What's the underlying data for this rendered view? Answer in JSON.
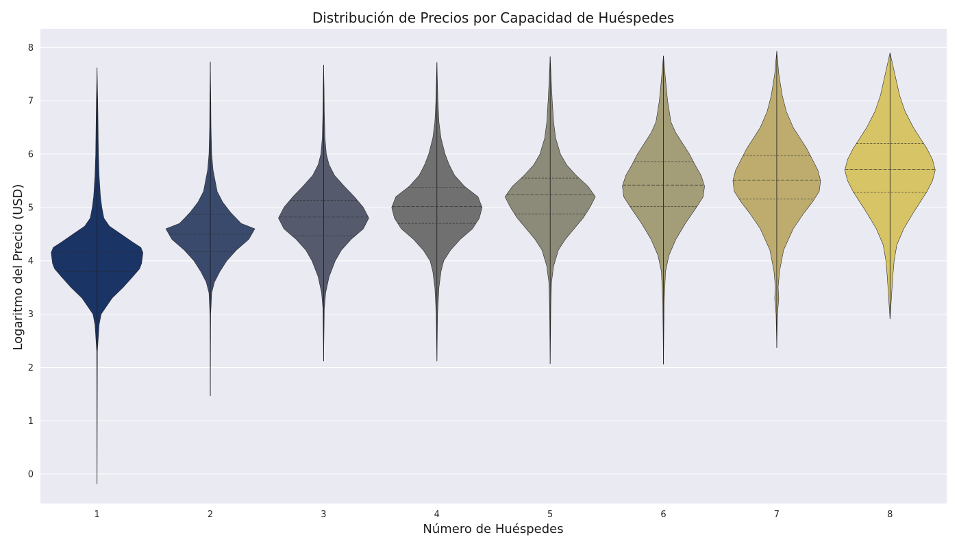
{
  "chart_data": {
    "type": "violin",
    "title": "Distribución de Precios por Capacidad de Huéspedes",
    "xlabel": "Número de Huéspedes",
    "ylabel": "Logaritmo del Precio (USD)",
    "categories": [
      "1",
      "2",
      "3",
      "4",
      "5",
      "6",
      "7",
      "8"
    ],
    "ylim": [
      -0.55,
      8.35
    ],
    "yticks": [
      "0",
      "1",
      "2",
      "3",
      "4",
      "5",
      "6",
      "7",
      "8"
    ],
    "grid": true,
    "colors": [
      "#1b3466",
      "#3a4a6d",
      "#555a6c",
      "#6f706f",
      "#8c8a78",
      "#a39d78",
      "#bdac6e",
      "#d7c466"
    ],
    "background": "#eaeaf2",
    "series": [
      {
        "min": -0.18,
        "max": 7.62,
        "q1": 3.8,
        "median": 4.16,
        "q3": 4.5,
        "profile": [
          [
            -0.18,
            0
          ],
          [
            2.3,
            0.5
          ],
          [
            2.8,
            3
          ],
          [
            3.0,
            6
          ],
          [
            3.3,
            22
          ],
          [
            3.5,
            38
          ],
          [
            3.7,
            52
          ],
          [
            3.85,
            62
          ],
          [
            3.95,
            65
          ],
          [
            4.05,
            66
          ],
          [
            4.15,
            67
          ],
          [
            4.25,
            64
          ],
          [
            4.35,
            52
          ],
          [
            4.5,
            35
          ],
          [
            4.65,
            18
          ],
          [
            4.8,
            10
          ],
          [
            5.0,
            7
          ],
          [
            5.2,
            5
          ],
          [
            5.4,
            4
          ],
          [
            5.6,
            3
          ],
          [
            6.0,
            2
          ],
          [
            6.5,
            1.5
          ],
          [
            7.0,
            1
          ],
          [
            7.62,
            0
          ]
        ]
      },
      {
        "min": 1.47,
        "max": 7.73,
        "q1": 4.17,
        "median": 4.5,
        "q3": 4.87,
        "profile": [
          [
            1.47,
            0
          ],
          [
            3.0,
            0.5
          ],
          [
            3.4,
            2
          ],
          [
            3.6,
            6
          ],
          [
            3.8,
            14
          ],
          [
            4.0,
            24
          ],
          [
            4.2,
            38
          ],
          [
            4.4,
            56
          ],
          [
            4.6,
            65
          ],
          [
            4.7,
            45
          ],
          [
            4.9,
            30
          ],
          [
            5.1,
            18
          ],
          [
            5.3,
            10
          ],
          [
            5.5,
            7
          ],
          [
            5.7,
            4
          ],
          [
            6.0,
            2
          ],
          [
            6.5,
            1
          ],
          [
            7.0,
            0.7
          ],
          [
            7.73,
            0
          ]
        ]
      },
      {
        "min": 2.12,
        "max": 7.67,
        "q1": 4.47,
        "median": 4.82,
        "q3": 5.13,
        "profile": [
          [
            2.12,
            0
          ],
          [
            3.1,
            1
          ],
          [
            3.4,
            3
          ],
          [
            3.7,
            8
          ],
          [
            4.0,
            17
          ],
          [
            4.2,
            26
          ],
          [
            4.4,
            40
          ],
          [
            4.6,
            58
          ],
          [
            4.8,
            66
          ],
          [
            5.0,
            58
          ],
          [
            5.2,
            45
          ],
          [
            5.4,
            30
          ],
          [
            5.6,
            16
          ],
          [
            5.8,
            8
          ],
          [
            6.0,
            4
          ],
          [
            6.3,
            2
          ],
          [
            6.8,
            1
          ],
          [
            7.2,
            0.7
          ],
          [
            7.67,
            0
          ]
        ]
      },
      {
        "min": 2.12,
        "max": 7.72,
        "q1": 4.7,
        "median": 5.02,
        "q3": 5.38,
        "profile": [
          [
            2.12,
            0
          ],
          [
            3.0,
            1
          ],
          [
            3.5,
            3
          ],
          [
            3.8,
            6
          ],
          [
            4.0,
            10
          ],
          [
            4.2,
            20
          ],
          [
            4.4,
            34
          ],
          [
            4.6,
            52
          ],
          [
            4.8,
            62
          ],
          [
            5.0,
            66
          ],
          [
            5.2,
            60
          ],
          [
            5.4,
            40
          ],
          [
            5.6,
            26
          ],
          [
            5.8,
            18
          ],
          [
            6.0,
            12
          ],
          [
            6.3,
            6
          ],
          [
            6.6,
            3
          ],
          [
            7.0,
            1.5
          ],
          [
            7.72,
            0
          ]
        ]
      },
      {
        "min": 2.07,
        "max": 7.83,
        "q1": 4.88,
        "median": 5.24,
        "q3": 5.55,
        "profile": [
          [
            2.07,
            0
          ],
          [
            3.2,
            1
          ],
          [
            3.6,
            2
          ],
          [
            3.9,
            5
          ],
          [
            4.2,
            12
          ],
          [
            4.4,
            22
          ],
          [
            4.6,
            35
          ],
          [
            4.8,
            48
          ],
          [
            5.0,
            58
          ],
          [
            5.2,
            66
          ],
          [
            5.4,
            55
          ],
          [
            5.6,
            38
          ],
          [
            5.8,
            24
          ],
          [
            6.0,
            15
          ],
          [
            6.3,
            8
          ],
          [
            6.6,
            5
          ],
          [
            7.0,
            3
          ],
          [
            7.4,
            1.5
          ],
          [
            7.83,
            0
          ]
        ]
      },
      {
        "min": 2.06,
        "max": 7.84,
        "q1": 5.02,
        "median": 5.42,
        "q3": 5.86,
        "profile": [
          [
            2.06,
            0
          ],
          [
            3.2,
            1
          ],
          [
            3.8,
            3
          ],
          [
            4.1,
            8
          ],
          [
            4.4,
            18
          ],
          [
            4.7,
            32
          ],
          [
            5.0,
            48
          ],
          [
            5.2,
            58
          ],
          [
            5.4,
            60
          ],
          [
            5.6,
            55
          ],
          [
            5.8,
            46
          ],
          [
            6.0,
            38
          ],
          [
            6.2,
            28
          ],
          [
            6.4,
            18
          ],
          [
            6.6,
            11
          ],
          [
            7.0,
            6
          ],
          [
            7.4,
            3
          ],
          [
            7.84,
            0
          ]
        ]
      },
      {
        "min": 2.37,
        "max": 7.93,
        "q1": 5.16,
        "median": 5.51,
        "q3": 5.97,
        "profile": [
          [
            2.37,
            0
          ],
          [
            3.0,
            1
          ],
          [
            3.3,
            3
          ],
          [
            3.5,
            2
          ],
          [
            3.8,
            4
          ],
          [
            4.2,
            10
          ],
          [
            4.6,
            24
          ],
          [
            4.9,
            40
          ],
          [
            5.1,
            52
          ],
          [
            5.3,
            62
          ],
          [
            5.5,
            64
          ],
          [
            5.7,
            60
          ],
          [
            5.9,
            52
          ],
          [
            6.1,
            44
          ],
          [
            6.3,
            34
          ],
          [
            6.5,
            24
          ],
          [
            6.8,
            14
          ],
          [
            7.1,
            8
          ],
          [
            7.5,
            3
          ],
          [
            7.93,
            0
          ]
        ]
      },
      {
        "min": 2.91,
        "max": 7.9,
        "q1": 5.29,
        "median": 5.71,
        "q3": 6.2,
        "profile": [
          [
            2.91,
            0
          ],
          [
            3.3,
            2
          ],
          [
            3.7,
            4
          ],
          [
            4.0,
            6
          ],
          [
            4.3,
            10
          ],
          [
            4.6,
            20
          ],
          [
            4.9,
            34
          ],
          [
            5.1,
            44
          ],
          [
            5.3,
            54
          ],
          [
            5.5,
            62
          ],
          [
            5.7,
            66
          ],
          [
            5.9,
            62
          ],
          [
            6.1,
            54
          ],
          [
            6.3,
            44
          ],
          [
            6.5,
            34
          ],
          [
            6.8,
            22
          ],
          [
            7.1,
            14
          ],
          [
            7.5,
            7
          ],
          [
            7.9,
            0
          ]
        ]
      }
    ]
  }
}
